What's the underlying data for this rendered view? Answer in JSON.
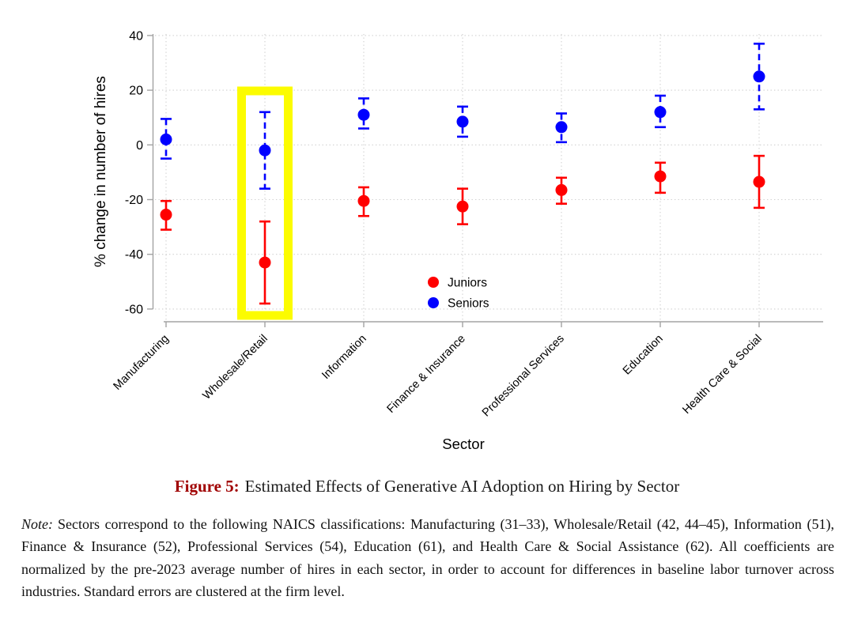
{
  "figure": {
    "caption_label": "Figure 5:",
    "caption_label_color": "#a00000",
    "caption_text": "Estimated Effects of Generative AI Adoption on Hiring by Sector",
    "note_label": "Note:",
    "note_text": "Sectors correspond to the following NAICS classifications: Manufacturing (31–33), Wholesale/Retail (42, 44–45), Information (51), Finance & Insurance (52), Professional Services (54), Education (61), and Health Care & Social Assistance (62). All coefficients are normalized by the pre-2023 average number of hires in each sector, in order to account for differences in baseline labor turnover across industries. Standard errors are clustered at the firm level."
  },
  "chart_data": {
    "type": "scatter",
    "title": "",
    "xlabel": "Sector",
    "ylabel": "% change in number of hires",
    "ylim": [
      -60,
      40
    ],
    "yticks": [
      40,
      20,
      0,
      -20,
      -40,
      -60
    ],
    "grid": "dotted horizontal and vertical",
    "categories": [
      "Manufacturing",
      "Wholesale/Retail",
      "Information",
      "Finance & Insurance",
      "Professional Services",
      "Education",
      "Health Care & Social"
    ],
    "series": [
      {
        "name": "Juniors",
        "color": "#ff0000",
        "line_style": "solid",
        "values": [
          -25.5,
          -43,
          -20.5,
          -22.5,
          -16.5,
          -11.5,
          -13.5
        ],
        "ci_low": [
          -31,
          -58,
          -26,
          -29,
          -21.5,
          -17.5,
          -23
        ],
        "ci_high": [
          -20.5,
          -28,
          -15.5,
          -16,
          -12,
          -6.5,
          -4
        ]
      },
      {
        "name": "Seniors",
        "color": "#0000ff",
        "line_style": "dashed",
        "values": [
          2,
          -2,
          11,
          8.5,
          6.5,
          12,
          25
        ],
        "ci_low": [
          -5,
          -16,
          6,
          3,
          1,
          6.5,
          13
        ],
        "ci_high": [
          9.5,
          12,
          17,
          14,
          11.5,
          18,
          37
        ]
      }
    ],
    "legend": {
      "position": "inside lower-center",
      "entries": [
        {
          "label": "Juniors",
          "color": "#ff0000"
        },
        {
          "label": "Seniors",
          "color": "#0000ff"
        }
      ]
    },
    "highlight": {
      "category": "Wholesale/Retail",
      "color": "#fcfc00"
    }
  }
}
